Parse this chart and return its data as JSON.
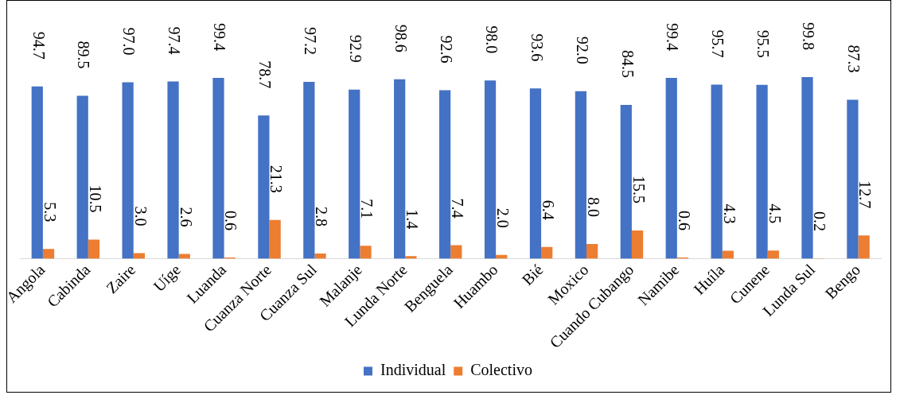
{
  "chart_data": {
    "type": "bar",
    "categories": [
      "Angola",
      "Cabinda",
      "Zaire",
      "Uíge",
      "Luanda",
      "Cuanza Norte",
      "Cuanza Sul",
      "Malanje",
      "Lunda Norte",
      "Benguela",
      "Huambo",
      "Bié",
      "Moxico",
      "Cuando Cubango",
      "Namibe",
      "Huíla",
      "Cunene",
      "Lunda Sul",
      "Bengo"
    ],
    "series": [
      {
        "name": "Individual",
        "color": "#4472c4",
        "values": [
          94.7,
          89.5,
          97.0,
          97.4,
          99.4,
          78.7,
          97.2,
          92.9,
          98.6,
          92.6,
          98.0,
          93.6,
          92.0,
          84.5,
          99.4,
          95.7,
          95.5,
          99.8,
          87.3
        ],
        "value_labels": [
          "94.7",
          "89.5",
          "97.0",
          "97.4",
          "99.4",
          "78.7",
          "97.2",
          "92.9",
          "98.6",
          "92.6",
          "98.0",
          "93.6",
          "92.0",
          "84.5",
          "99.4",
          "95.7",
          "95.5",
          "99.8",
          "87.3"
        ]
      },
      {
        "name": "Colectivo",
        "color": "#ed7d31",
        "values": [
          5.3,
          10.5,
          3.0,
          2.6,
          0.6,
          21.3,
          2.8,
          7.1,
          1.4,
          7.4,
          2.0,
          6.4,
          8.0,
          15.5,
          0.6,
          4.3,
          4.5,
          0.2,
          12.7
        ],
        "value_labels": [
          "5.3",
          "10.5",
          "3.0",
          "2.6",
          "0.6",
          "21.3",
          "2.8",
          "7.1",
          "1.4",
          "7.4",
          "2.0",
          "6.4",
          "8.0",
          "15.5",
          "0.6",
          "4.3",
          "4.5",
          "0.2",
          "12.7"
        ]
      }
    ],
    "tick_labels": "x",
    "legend": "bottom",
    "grid": false
  }
}
